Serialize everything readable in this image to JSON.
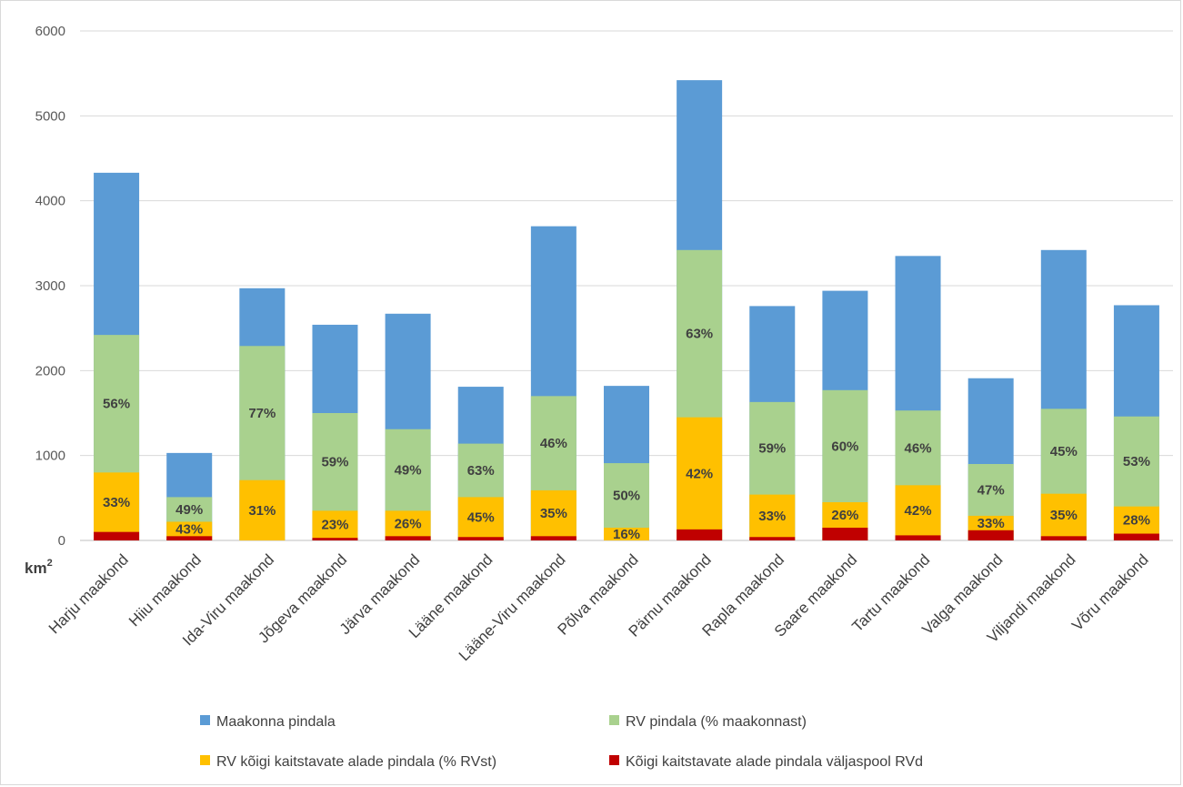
{
  "chart_data": {
    "type": "bar",
    "stacked": true,
    "ylabel_unit": "km",
    "ylabel_unit_sup": "2",
    "ylim": [
      0,
      6000
    ],
    "yticks": [
      0,
      1000,
      2000,
      3000,
      4000,
      5000,
      6000
    ],
    "grid": true,
    "legend_position": "bottom",
    "categories": [
      "Harju maakond",
      "Hiiu maakond",
      "Ida-Viru maakond",
      "Jõgeva maakond",
      "Järva maakond",
      "Lääne maakond",
      "Lääne-Viru maakond",
      "Põlva maakond",
      "Pärnu maakond",
      "Rapla maakond",
      "Saare maakond",
      "Tartu maakond",
      "Valga maakond",
      "Viljandi maakond",
      "Võru maakond"
    ],
    "totals": {
      "county_area": [
        4330,
        1030,
        2970,
        2540,
        2670,
        1810,
        3700,
        1820,
        5420,
        2760,
        2940,
        3350,
        1910,
        3420,
        2770
      ],
      "rv_area": [
        2420,
        510,
        2290,
        1500,
        1310,
        1140,
        1700,
        910,
        3420,
        1630,
        1770,
        1530,
        900,
        1550,
        1460
      ],
      "rv_protected_area": [
        800,
        220,
        710,
        350,
        350,
        510,
        590,
        150,
        1450,
        540,
        450,
        650,
        290,
        550,
        400
      ],
      "protected_outside_rv": [
        100,
        50,
        0,
        30,
        50,
        40,
        50,
        0,
        130,
        40,
        150,
        60,
        120,
        50,
        80
      ]
    },
    "series": [
      {
        "name": "Maakonna pindala",
        "color": "#5b9bd5",
        "key": "county_area"
      },
      {
        "name": "RV pindala (% maakonnast)",
        "color": "#a9d18e",
        "key": "rv_area"
      },
      {
        "name": "RV kõigi kaitstavate alade pindala (% RVst)",
        "color": "#ffc000",
        "key": "rv_protected_area"
      },
      {
        "name": "Kõigi kaitstavate alade pindala väljaspool RVd",
        "color": "#c00000",
        "key": "protected_outside_rv"
      }
    ],
    "labels_rv_pct": [
      "56%",
      "49%",
      "77%",
      "59%",
      "49%",
      "63%",
      "46%",
      "50%",
      "63%",
      "59%",
      "60%",
      "46%",
      "47%",
      "45%",
      "53%"
    ],
    "labels_protected_pct": [
      "33%",
      "43%",
      "31%",
      "23%",
      "26%",
      "45%",
      "35%",
      "16%",
      "42%",
      "33%",
      "26%",
      "42%",
      "33%",
      "35%",
      "28%"
    ]
  }
}
